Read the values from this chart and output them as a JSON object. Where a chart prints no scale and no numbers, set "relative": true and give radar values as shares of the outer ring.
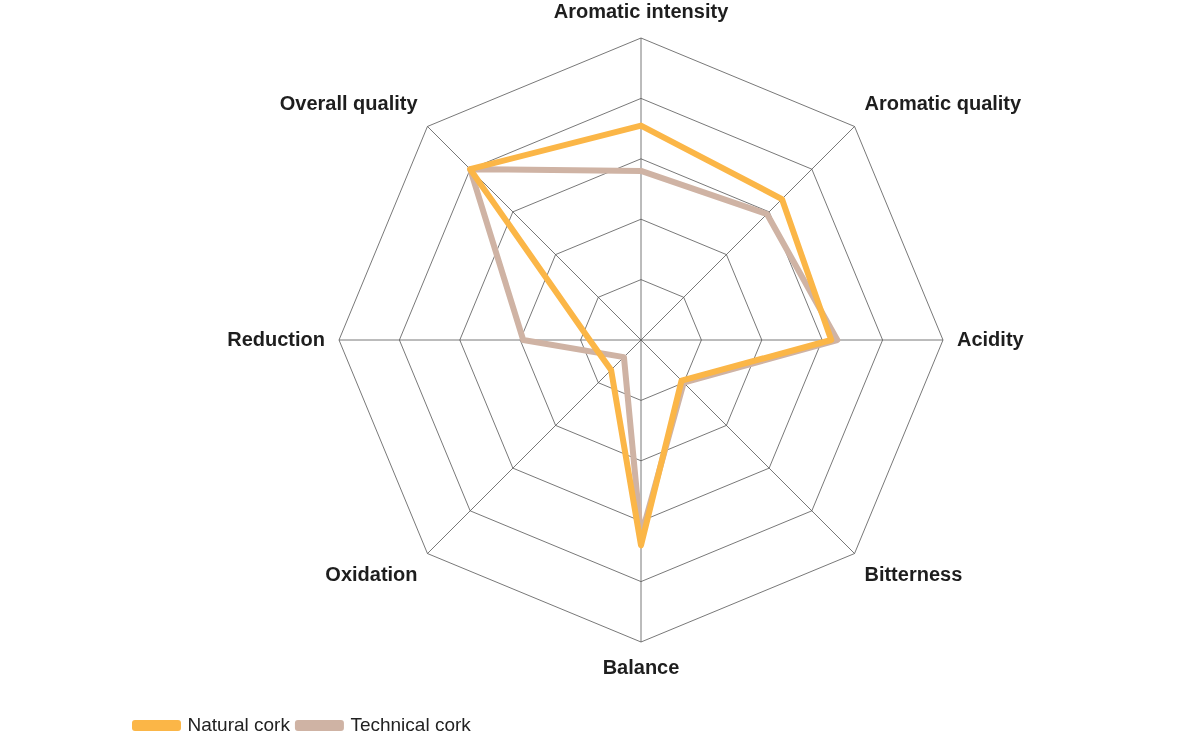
{
  "chart_data": {
    "type": "radar",
    "relative": true,
    "grid": true,
    "legend": "bottom left",
    "marker": "none",
    "line_style": "solid",
    "categories": [
      "Aromatic intensity",
      "Aromatic quality",
      "Acidity",
      "Bitterness",
      "Balance",
      "Oxidation",
      "Reduction",
      "Overall quality"
    ],
    "series": [
      {
        "name": "Natural cork",
        "color": "#fbb647",
        "values": [
          0.71,
          0.66,
          0.63,
          0.19,
          0.68,
          0.14,
          0.17,
          0.8
        ]
      },
      {
        "name": "Technical cork",
        "color": "#cfb3a4",
        "values": [
          0.56,
          0.59,
          0.65,
          0.2,
          0.65,
          0.08,
          0.39,
          0.8
        ]
      }
    ]
  }
}
